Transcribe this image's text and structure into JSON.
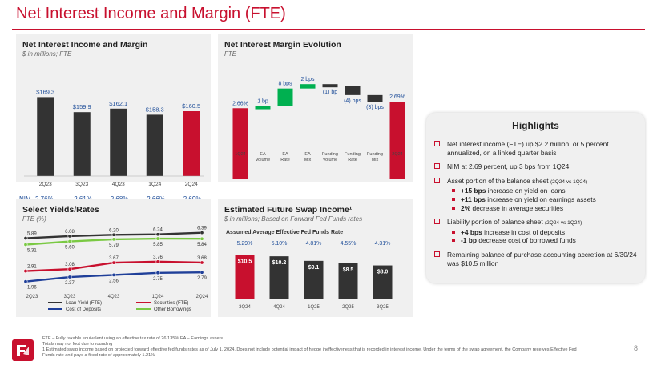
{
  "title": "Net Interest Income and Margin (FTE)",
  "colors": {
    "brand_red": "#c8102e",
    "bar_dark": "#333333",
    "bar_green": "#00b050",
    "nim_red": "#c8102e",
    "text_blue": "#1f4e99"
  },
  "panels": {
    "nii": {
      "title": "Net Interest Income and Margin",
      "subtitle": "$ in millions; FTE"
    },
    "nim": {
      "title": "Net Interest Margin Evolution",
      "subtitle": "FTE"
    },
    "yields": {
      "title": "Select Yields/Rates",
      "subtitle": "FTE (%)"
    },
    "swap": {
      "title": "Estimated Future Swap Income¹",
      "subtitle": "$ in millions; Based on Forward Fed Funds rates"
    }
  },
  "highlights": {
    "title": "Highlights",
    "items": [
      "Net interest income (FTE) up $2.2 million, or 5 percent annualized, on a linked quarter basis",
      "NIM at 2.69 percent, up 3 bps from 1Q24",
      "Asset portion of the balance sheet",
      "Liability portion of balance sheet",
      "Remaining balance of purchase accounting accretion at 6/30/24 was $10.5 million"
    ],
    "asset_note": "(2Q24 vs 1Q24)",
    "liability_note": "(2Q24 vs 1Q24)",
    "asset_subs": [
      {
        "bold": "+15 bps",
        "text": "increase on yield on loans"
      },
      {
        "bold": "+11 bps",
        "text": "increase on yield on earnings assets"
      },
      {
        "bold": "2%",
        "text": "decrease in average securities"
      }
    ],
    "liability_subs": [
      {
        "bold": "+4 bps",
        "text": "increase in cost of deposits"
      },
      {
        "bold": "-1 bp",
        "text": "decrease cost of borrowed funds"
      }
    ]
  },
  "footnotes": [
    "FTE – Fully taxable equivalent using an effective tax rate of 26.135%      EA – Earnings assets",
    "Totals may not foot due to rounding",
    "1 Estimated swap income based on projected forward effective fed funds rates as of July 1, 2024. Does not include potential impact of hedge ineffectiveness that is recorded in interest income. Under the terms of the swap agreement, the Company receives Effective Fed",
    "  Funds rate and pays a fixed rate of approximately 1.21%"
  ],
  "page_number": "8",
  "logo_label": "logo",
  "chart_data": [
    {
      "id": "nii",
      "type": "bar",
      "title": "Net Interest Income and Margin",
      "categories": [
        "2Q23",
        "3Q23",
        "4Q23",
        "1Q24",
        "2Q24"
      ],
      "values": [
        169.3,
        159.9,
        162.1,
        158.3,
        160.5
      ],
      "value_labels": [
        "$169.3",
        "$159.9",
        "$162.1",
        "$158.3",
        "$160.5"
      ],
      "highlight_last": true,
      "ylim": [
        120,
        175
      ],
      "nim_label": "NIM",
      "nim_values": [
        "2.76%",
        "2.61%",
        "2.68%",
        "2.66%",
        "2.69%"
      ]
    },
    {
      "id": "nim_evolution",
      "type": "waterfall",
      "title": "Net Interest Margin Evolution",
      "categories": [
        "1Q24",
        "EA Volume",
        "EA Rate",
        "EA Mix",
        "Funding Volume",
        "Funding Rate",
        "Funding Mix",
        "2Q24"
      ],
      "category_lines": [
        [
          "1Q24"
        ],
        [
          "EA",
          "Volume"
        ],
        [
          "EA",
          "Rate"
        ],
        [
          "EA",
          "Mix"
        ],
        [
          "Funding",
          "Volume"
        ],
        [
          "Funding",
          "Rate"
        ],
        [
          "Funding",
          "Mix"
        ],
        [
          "2Q24"
        ]
      ],
      "start": 2.66,
      "changes_bps": [
        1,
        8,
        2,
        -1,
        -4,
        -3
      ],
      "end": 2.69,
      "labels": [
        "2.66%",
        "1 bp",
        "8 bps",
        "2 bps",
        "(1) bp",
        "(4) bps",
        "(3) bps",
        "2.69%"
      ],
      "ylim": [
        2.5,
        2.8
      ]
    },
    {
      "id": "yields",
      "type": "line",
      "title": "Select Yields/Rates",
      "categories": [
        "2Q23",
        "3Q23",
        "4Q23",
        "1Q24",
        "2Q24"
      ],
      "ylim": [
        1.5,
        6.8
      ],
      "series": [
        {
          "name": "Loan Yield (FTE)",
          "color": "#333333",
          "values": [
            5.89,
            6.08,
            6.2,
            6.24,
            6.39
          ],
          "labels": [
            "5.89",
            "6.08",
            "6.20",
            "6.24",
            "6.39"
          ]
        },
        {
          "name": "Securities (FTE)",
          "color": "#c8102e",
          "values": [
            2.91,
            3.08,
            3.67,
            3.76,
            3.68
          ],
          "labels": [
            "2.91",
            "3.08",
            "3.67",
            "3.76",
            "3.68"
          ]
        },
        {
          "name": "Cost of Deposits",
          "color": "#1f3f99",
          "values": [
            1.96,
            2.37,
            2.56,
            2.75,
            2.79
          ],
          "labels": [
            "1.96",
            "2.37",
            "2.56",
            "2.75",
            "2.79"
          ]
        },
        {
          "name": "Other Borrowings",
          "color": "#7ac943",
          "values": [
            5.31,
            5.6,
            5.79,
            5.85,
            5.84
          ],
          "labels": [
            "5.31",
            "5.60",
            "5.79",
            "5.85",
            "5.84"
          ]
        }
      ]
    },
    {
      "id": "swap",
      "type": "bar",
      "title": "Estimated Future Swap Income¹",
      "subtitle_inner": "Assumed Average Effective Fed Funds Rate",
      "rates": [
        "5.29%",
        "5.10%",
        "4.81%",
        "4.55%",
        "4.31%"
      ],
      "categories": [
        "3Q24",
        "4Q24",
        "1Q25",
        "2Q25",
        "3Q25"
      ],
      "values": [
        10.5,
        10.2,
        9.1,
        8.5,
        8.0
      ],
      "value_labels": [
        "$10.5",
        "$10.2",
        "$9.1",
        "$8.5",
        "$8.0"
      ],
      "highlight_first": true,
      "ylim": [
        0,
        11
      ]
    }
  ]
}
